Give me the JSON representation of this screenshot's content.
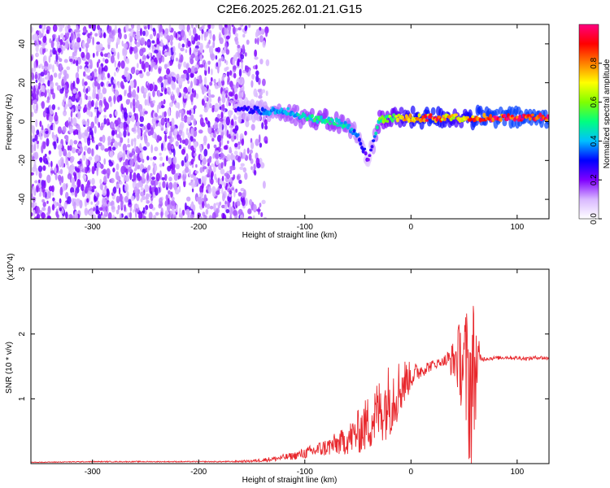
{
  "title": "C2E6.2025.262.01.21.G15",
  "chart_data": [
    {
      "type": "heatmap",
      "xlabel": "Height of straight line (km)",
      "ylabel": "Frequency (Hz)",
      "xlim": [
        -358,
        130
      ],
      "ylim": [
        -50,
        50
      ],
      "xticks": [
        -300,
        -200,
        -100,
        0,
        100
      ],
      "yticks": [
        -40,
        -20,
        0,
        20,
        40
      ],
      "colorbar": {
        "label": "Normalized spectral amplitude",
        "range": [
          0,
          1
        ],
        "ticks": [
          "0.0",
          "0.2",
          "0.4",
          "0.6",
          "0.8"
        ],
        "colors": [
          "#ffffff",
          "#d9b8ff",
          "#8000ff",
          "#0000ff",
          "#00c0ff",
          "#00ff80",
          "#80ff00",
          "#ffff00",
          "#ff8000",
          "#ff0000",
          "#ff0080"
        ]
      },
      "noise_region": {
        "x": [
          -358,
          -155
        ],
        "amplitude": 0.15
      },
      "trace": [
        {
          "x": -165,
          "y": 6,
          "a": 0.25
        },
        {
          "x": -150,
          "y": 6,
          "a": 0.3
        },
        {
          "x": -135,
          "y": 5,
          "a": 0.35
        },
        {
          "x": -120,
          "y": 6,
          "a": 0.45
        },
        {
          "x": -105,
          "y": 3,
          "a": 0.45
        },
        {
          "x": -90,
          "y": 1,
          "a": 0.5
        },
        {
          "x": -75,
          "y": 0,
          "a": 0.5
        },
        {
          "x": -60,
          "y": -2,
          "a": 0.45
        },
        {
          "x": -50,
          "y": -8,
          "a": 0.35
        },
        {
          "x": -45,
          "y": -14,
          "a": 0.3
        },
        {
          "x": -40,
          "y": -20,
          "a": 0.2
        },
        {
          "x": -30,
          "y": 1,
          "a": 0.55
        },
        {
          "x": -15,
          "y": 2,
          "a": 0.65
        },
        {
          "x": 0,
          "y": 2,
          "a": 0.8
        },
        {
          "x": 20,
          "y": 2,
          "a": 0.9
        },
        {
          "x": 45,
          "y": 2,
          "a": 0.7
        },
        {
          "x": 60,
          "y": 2,
          "a": 0.9
        },
        {
          "x": 80,
          "y": 2,
          "a": 0.95
        },
        {
          "x": 100,
          "y": 2,
          "a": 0.95
        },
        {
          "x": 130,
          "y": 2,
          "a": 0.95
        }
      ]
    },
    {
      "type": "line",
      "xlabel": "Height of straight line (km)",
      "ylabel": "SNR (10 * v/v)",
      "yscale_label": "(x10^4)",
      "xlim": [
        -358,
        130
      ],
      "ylim": [
        0,
        3
      ],
      "xticks": [
        -300,
        -200,
        -100,
        0,
        100
      ],
      "yticks": [
        1,
        2,
        3
      ],
      "color": "#e8282d",
      "series": [
        {
          "x": [
            -358,
            -300,
            -250,
            -200,
            -170,
            -150,
            -130,
            -110,
            -95,
            -80,
            -65,
            -55,
            -45,
            -35,
            -25,
            -18,
            -10,
            -5,
            0,
            10,
            20,
            30,
            40,
            45,
            50,
            55,
            58,
            62,
            66,
            70,
            80,
            90,
            100,
            110,
            120,
            130
          ],
          "y": [
            0.02,
            0.03,
            0.03,
            0.03,
            0.03,
            0.04,
            0.07,
            0.12,
            0.18,
            0.25,
            0.33,
            0.42,
            0.55,
            0.72,
            0.9,
            1.05,
            1.18,
            1.28,
            1.35,
            1.45,
            1.52,
            1.58,
            1.6,
            1.62,
            1.5,
            1.2,
            1.3,
            1.55,
            1.62,
            1.62,
            1.63,
            1.64,
            1.63,
            1.62,
            1.64,
            1.62
          ],
          "noise": [
            0.005,
            0.008,
            0.008,
            0.008,
            0.01,
            0.02,
            0.04,
            0.06,
            0.1,
            0.14,
            0.2,
            0.28,
            0.4,
            0.5,
            0.55,
            0.6,
            0.45,
            0.35,
            0.2,
            0.12,
            0.08,
            0.06,
            0.3,
            0.55,
            0.9,
            1.3,
            1.4,
            0.6,
            0.05,
            0.03,
            0.03,
            0.03,
            0.03,
            0.03,
            0.03,
            0.03
          ]
        }
      ]
    }
  ]
}
